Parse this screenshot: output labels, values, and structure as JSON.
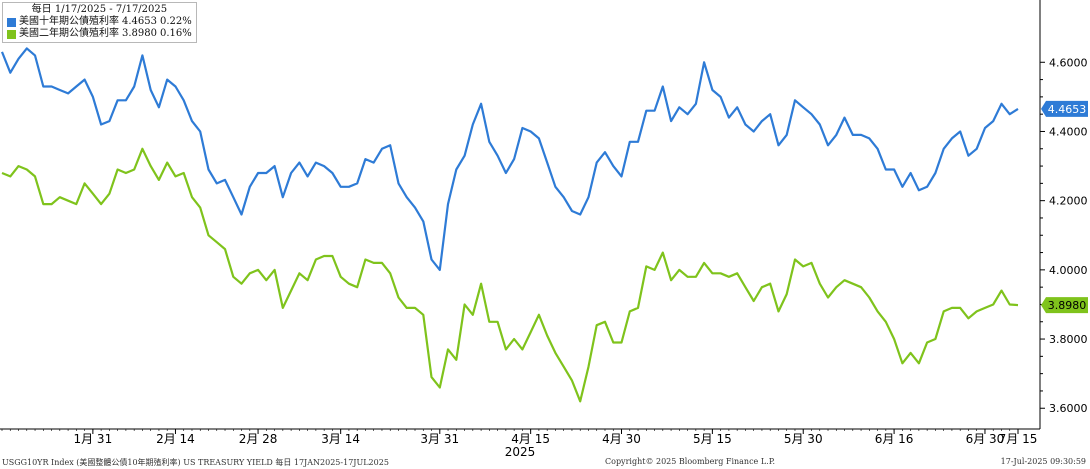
{
  "legend": {
    "title": "每日 1/17/2025 - 7/17/2025",
    "items": [
      {
        "name": "美國十年期公債殖利率",
        "value": "4.4653",
        "change": "0.22%"
      },
      {
        "name": "美國二年期公債殖利率",
        "value": "3.8980",
        "change": "0.16%"
      }
    ]
  },
  "footer": {
    "left": "USGG10YR Index (美國整體公債10年期殖利率) US TREASURY YIELD  每日 17JAN2025-17JUL2025",
    "center": "Copyright© 2025 Bloomberg Finance L.P.",
    "right": "17-Jul-2025 09:30:59"
  },
  "chart_data": {
    "type": "line",
    "year_label": "2025",
    "x_tick_labels": [
      "1月 31",
      "2月 14",
      "2月 28",
      "3月 14",
      "3月 31",
      "4月 15",
      "4月 30",
      "5月 15",
      "5月 30",
      "6月 16",
      "6月 30",
      "7月 15"
    ],
    "y_ticks": [
      3.6,
      3.8,
      4.0,
      4.2,
      4.4,
      4.6
    ],
    "y_tick_labels": [
      "3.6000",
      "3.8000",
      "4.0000",
      "4.2000",
      "4.4000",
      "4.6000"
    ],
    "ylim": [
      3.54,
      4.78
    ],
    "grid": false,
    "legend_position": "top-left",
    "colors": {
      "ten_year": "#2e7bd6",
      "two_year": "#7fc31c"
    },
    "series": [
      {
        "name": "美國十年期公債殖利率",
        "last_label": "4.4653",
        "values": [
          4.63,
          4.57,
          4.61,
          4.64,
          4.62,
          4.53,
          4.53,
          4.52,
          4.51,
          4.53,
          4.55,
          4.5,
          4.42,
          4.43,
          4.49,
          4.49,
          4.53,
          4.62,
          4.52,
          4.47,
          4.55,
          4.53,
          4.49,
          4.43,
          4.4,
          4.29,
          4.25,
          4.26,
          4.21,
          4.16,
          4.24,
          4.28,
          4.28,
          4.3,
          4.21,
          4.28,
          4.31,
          4.27,
          4.31,
          4.3,
          4.28,
          4.24,
          4.24,
          4.25,
          4.32,
          4.31,
          4.35,
          4.36,
          4.25,
          4.21,
          4.18,
          4.14,
          4.03,
          4.0,
          4.19,
          4.29,
          4.33,
          4.42,
          4.48,
          4.37,
          4.33,
          4.28,
          4.32,
          4.41,
          4.4,
          4.38,
          4.31,
          4.24,
          4.21,
          4.17,
          4.16,
          4.21,
          4.31,
          4.34,
          4.3,
          4.27,
          4.37,
          4.37,
          4.46,
          4.46,
          4.53,
          4.43,
          4.47,
          4.45,
          4.48,
          4.6,
          4.52,
          4.5,
          4.44,
          4.47,
          4.42,
          4.4,
          4.43,
          4.45,
          4.36,
          4.39,
          4.49,
          4.47,
          4.45,
          4.42,
          4.36,
          4.39,
          4.44,
          4.39,
          4.39,
          4.38,
          4.35,
          4.29,
          4.29,
          4.24,
          4.28,
          4.23,
          4.24,
          4.28,
          4.35,
          4.38,
          4.4,
          4.33,
          4.35,
          4.41,
          4.43,
          4.48,
          4.45,
          4.4653
        ]
      },
      {
        "name": "美國二年期公債殖利率",
        "last_label": "3.8980",
        "values": [
          4.28,
          4.27,
          4.3,
          4.29,
          4.27,
          4.19,
          4.19,
          4.21,
          4.2,
          4.19,
          4.25,
          4.22,
          4.19,
          4.22,
          4.29,
          4.28,
          4.29,
          4.35,
          4.3,
          4.26,
          4.31,
          4.27,
          4.28,
          4.21,
          4.18,
          4.1,
          4.08,
          4.06,
          3.98,
          3.96,
          3.99,
          4.0,
          3.97,
          4.0,
          3.89,
          3.94,
          3.99,
          3.97,
          4.03,
          4.04,
          4.04,
          3.98,
          3.96,
          3.95,
          4.03,
          4.02,
          4.02,
          3.99,
          3.92,
          3.89,
          3.89,
          3.87,
          3.69,
          3.66,
          3.77,
          3.74,
          3.9,
          3.87,
          3.96,
          3.85,
          3.85,
          3.77,
          3.8,
          3.77,
          3.82,
          3.87,
          3.81,
          3.76,
          3.72,
          3.68,
          3.62,
          3.72,
          3.84,
          3.85,
          3.79,
          3.79,
          3.88,
          3.89,
          4.01,
          4.0,
          4.05,
          3.97,
          4.0,
          3.98,
          3.98,
          4.02,
          3.99,
          3.99,
          3.98,
          3.99,
          3.95,
          3.91,
          3.95,
          3.96,
          3.88,
          3.93,
          4.03,
          4.01,
          4.02,
          3.96,
          3.92,
          3.95,
          3.97,
          3.96,
          3.95,
          3.92,
          3.88,
          3.85,
          3.8,
          3.73,
          3.76,
          3.73,
          3.79,
          3.8,
          3.88,
          3.89,
          3.89,
          3.86,
          3.88,
          3.89,
          3.9,
          3.94,
          3.9,
          3.898
        ]
      }
    ]
  }
}
